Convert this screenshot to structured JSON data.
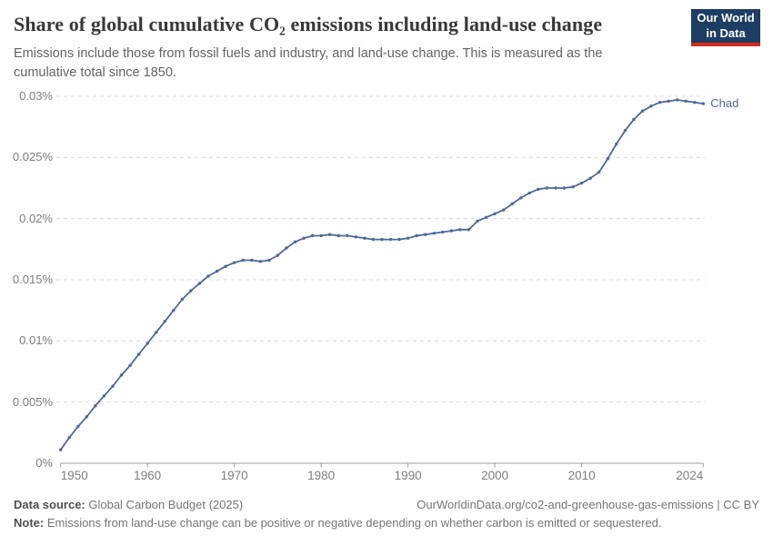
{
  "header": {
    "title": "Share of global cumulative CO₂ emissions including land-use change",
    "subtitle": "Emissions include those from fossil fuels and industry, and land-use change. This is measured as the cumulative total since 1850."
  },
  "logo": {
    "line1": "Our World",
    "line2": "in Data",
    "bg_color": "#1d3d63",
    "bar_color": "#d42b21"
  },
  "footer": {
    "source_label": "Data source:",
    "source_text": " Global Carbon Budget (2025)",
    "link_text": "OurWorldinData.org/co2-and-greenhouse-gas-emissions | CC BY",
    "note_label": "Note:",
    "note_text": " Emissions from land-use change can be positive or negative depending on whether carbon is emitted or sequestered."
  },
  "colors": {
    "line": "#4c6a9c",
    "series_label": "#4c6a9c",
    "gridline": "#dcdcdc",
    "axis": "#9e9e9e",
    "tick_text": "#7d7d7d"
  },
  "chart_data": {
    "type": "line",
    "title": "Share of global cumulative CO₂ emissions including land-use change",
    "unit": "%",
    "xlim": [
      1950,
      2024
    ],
    "ylim": [
      0,
      0.03
    ],
    "grid": "horizontal-dashed",
    "legend_position": "end-of-line-label",
    "x_ticks": [
      1950,
      1960,
      1970,
      1980,
      1990,
      2000,
      2010,
      2024
    ],
    "y_ticks": [
      0,
      0.005,
      0.01,
      0.015,
      0.02,
      0.025,
      0.03
    ],
    "y_tick_labels": [
      "0%",
      "0.005%",
      "0.01%",
      "0.015%",
      "0.02%",
      "0.025%",
      "0.03%"
    ],
    "series": [
      {
        "name": "Chad",
        "x_start": 1950,
        "x_step": 1,
        "values": [
          0.0011,
          0.0021,
          0.003,
          0.0038,
          0.0047,
          0.0055,
          0.0063,
          0.0072,
          0.008,
          0.0089,
          0.0098,
          0.0107,
          0.0116,
          0.0125,
          0.0134,
          0.0141,
          0.0147,
          0.0153,
          0.0157,
          0.0161,
          0.0164,
          0.0166,
          0.0166,
          0.0165,
          0.0166,
          0.017,
          0.0176,
          0.0181,
          0.0184,
          0.0186,
          0.0186,
          0.0187,
          0.0186,
          0.0186,
          0.0185,
          0.0184,
          0.0183,
          0.0183,
          0.0183,
          0.0183,
          0.0184,
          0.0186,
          0.0187,
          0.0188,
          0.0189,
          0.019,
          0.0191,
          0.0191,
          0.0198,
          0.0201,
          0.0204,
          0.0207,
          0.0212,
          0.0217,
          0.0221,
          0.0224,
          0.0225,
          0.0225,
          0.0225,
          0.0226,
          0.0229,
          0.0233,
          0.0238,
          0.0249,
          0.0261,
          0.0272,
          0.0281,
          0.0288,
          0.0292,
          0.0295,
          0.0296,
          0.0297,
          0.0296,
          0.0295,
          0.0294
        ]
      }
    ]
  }
}
